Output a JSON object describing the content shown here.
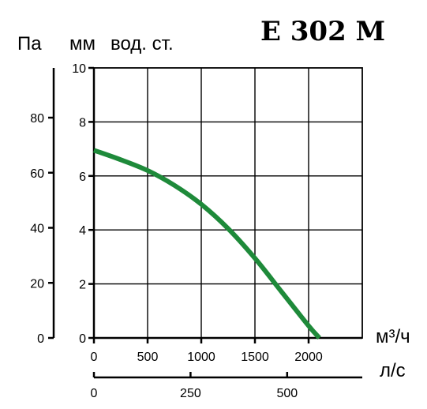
{
  "chart_data": {
    "type": "line",
    "title": "E 302 M",
    "units": {
      "pa": "Па",
      "mm": "мм",
      "vod": "вод. ст.",
      "flow_m3h": "м³/ч",
      "flow_ls": "л/с"
    },
    "x_m3h": {
      "lim": [
        0,
        2500
      ],
      "ticks": [
        0,
        500,
        1000,
        1500,
        2000
      ]
    },
    "x_ls": {
      "ticks": [
        0,
        250,
        500
      ]
    },
    "y_mm": {
      "lim": [
        0,
        10
      ],
      "ticks": [
        0,
        2,
        4,
        6,
        8,
        10
      ]
    },
    "y_pa": {
      "lim": [
        0,
        98.07
      ],
      "ticks": [
        0,
        20,
        40,
        60,
        80
      ]
    },
    "grid": true,
    "series": [
      {
        "color": "#1e8a3a",
        "x": [
          0,
          250,
          500,
          750,
          1000,
          1250,
          1500,
          1750,
          2000,
          2100
        ],
        "y": [
          6.95,
          6.6,
          6.2,
          5.65,
          4.95,
          4.05,
          2.95,
          1.7,
          0.45,
          0
        ]
      }
    ]
  }
}
